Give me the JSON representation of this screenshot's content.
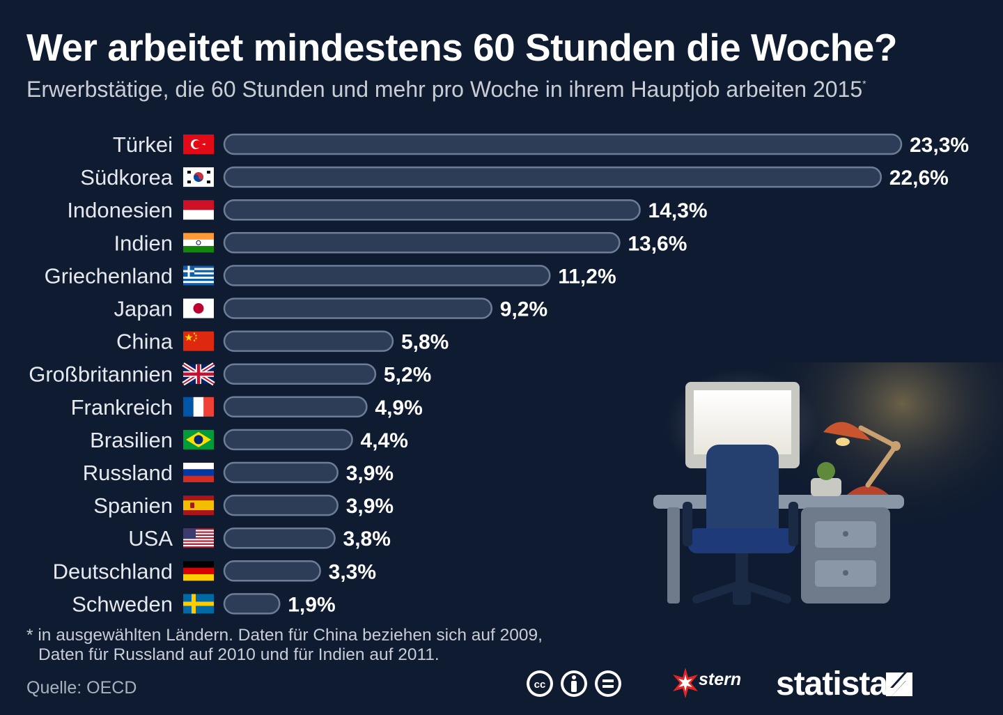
{
  "title": "Wer arbeitet mindestens 60 Stunden die Woche?",
  "subtitle": "Erwerbstätige, die 60 Stunden und mehr pro Woche in ihrem Hauptjob arbeiten 2015",
  "subtitle_mark": "*",
  "footnote": {
    "line1": "* in ausgewählten Ländern. Daten für China beziehen sich auf 2009,",
    "line2": "Daten für Russland auf 2010 und für Indien auf 2011."
  },
  "source": "Quelle: OECD",
  "brand": {
    "partner": "stern",
    "name": "statista"
  },
  "colors": {
    "background": "#0f1b30",
    "bar_fill": "#2d3d58",
    "bar_stroke": "#6d7d98",
    "text": "#ffffff"
  },
  "chart_data": {
    "type": "bar",
    "orientation": "horizontal",
    "categories": [
      "Türkei",
      "Südkorea",
      "Indonesien",
      "Indien",
      "Griechenland",
      "Japan",
      "China",
      "Großbritannien",
      "Frankreich",
      "Brasilien",
      "Russland",
      "Spanien",
      "USA",
      "Deutschland",
      "Schweden"
    ],
    "values": [
      23.3,
      22.6,
      14.3,
      13.6,
      11.2,
      9.2,
      5.8,
      5.2,
      4.9,
      4.4,
      3.9,
      3.9,
      3.8,
      3.3,
      1.9
    ],
    "value_labels": [
      "23,3%",
      "22,6%",
      "14,3%",
      "13,6%",
      "11,2%",
      "9,2%",
      "5,8%",
      "5,2%",
      "4,9%",
      "4,4%",
      "3,9%",
      "3,9%",
      "3,8%",
      "3,3%",
      "1,9%"
    ],
    "flags": [
      "turkey-flag",
      "south-korea-flag",
      "indonesia-flag",
      "india-flag",
      "greece-flag",
      "japan-flag",
      "china-flag",
      "uk-flag",
      "france-flag",
      "brazil-flag",
      "russia-flag",
      "spain-flag",
      "usa-flag",
      "germany-flag",
      "sweden-flag"
    ],
    "unit": "%",
    "xlim": [
      0,
      23.3
    ]
  }
}
